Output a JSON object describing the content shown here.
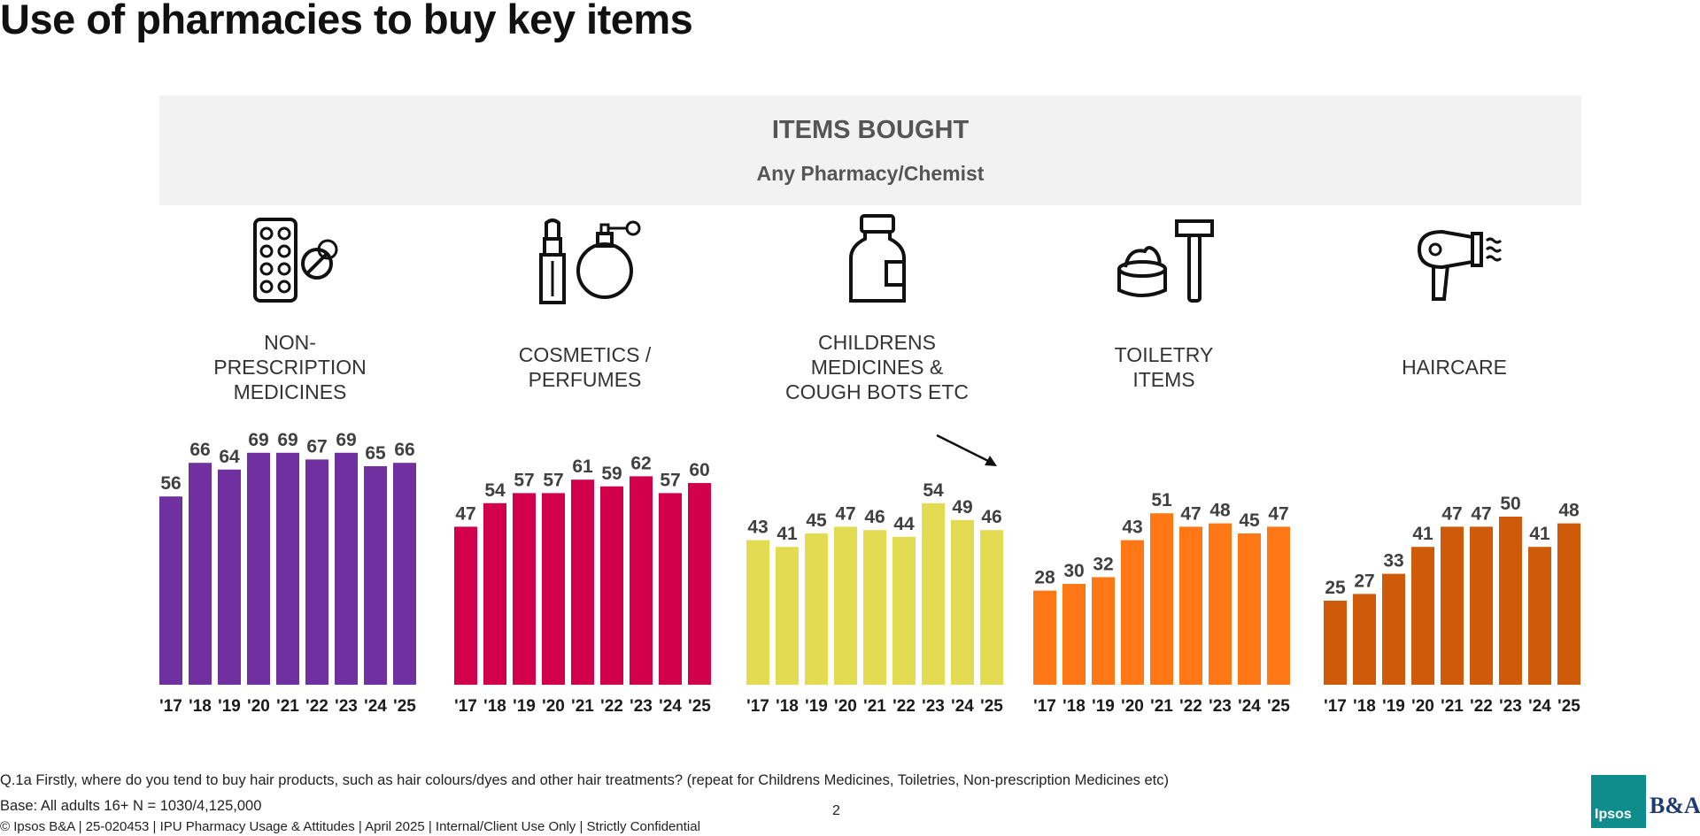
{
  "title": "Use of pharmacies to buy key items",
  "header": {
    "title": "ITEMS BOUGHT",
    "subtitle": "Any Pharmacy/Chemist"
  },
  "colors": {
    "non_prescription": "#7030a0",
    "cosmetics": "#d2004b",
    "childrens": "#e3db52",
    "toiletry": "#ff7815",
    "haircare": "#cf5a0a",
    "label": "#404040",
    "header_band": "#f2f2f2"
  },
  "icons": [
    "pill-blister-icon",
    "lipstick-perfume-icon",
    "medicine-bottle-icon",
    "cream-razor-icon",
    "hairdryer-icon"
  ],
  "chart_data": [
    {
      "type": "bar",
      "title": "NON-\nPRESCRIPTION\nMEDICINES",
      "categories": [
        "'17",
        "'18",
        "'19",
        "'20",
        "'21",
        "'22",
        "'23",
        "'24",
        "'25"
      ],
      "values": [
        56,
        66,
        64,
        69,
        69,
        67,
        69,
        65,
        66
      ],
      "color": "#7030a0",
      "ylim": [
        0,
        100
      ]
    },
    {
      "type": "bar",
      "title": "COSMETICS /\nPERFUMES",
      "categories": [
        "'17",
        "'18",
        "'19",
        "'20",
        "'21",
        "'22",
        "'23",
        "'24",
        "'25"
      ],
      "values": [
        47,
        54,
        57,
        57,
        61,
        59,
        62,
        57,
        60
      ],
      "color": "#d2004b",
      "ylim": [
        0,
        100
      ]
    },
    {
      "type": "bar",
      "title": "CHILDRENS\nMEDICINES &\nCOUGH BOTS ETC",
      "categories": [
        "'17",
        "'18",
        "'19",
        "'20",
        "'21",
        "'22",
        "'23",
        "'24",
        "'25"
      ],
      "values": [
        43,
        41,
        45,
        47,
        46,
        44,
        54,
        49,
        46
      ],
      "color": "#e3db52",
      "ylim": [
        0,
        100
      ],
      "annotation": "downward-trend-arrow"
    },
    {
      "type": "bar",
      "title": "TOILETRY\nITEMS",
      "categories": [
        "'17",
        "'18",
        "'19",
        "'20",
        "'21",
        "'22",
        "'23",
        "'24",
        "'25"
      ],
      "values": [
        28,
        30,
        32,
        43,
        51,
        47,
        48,
        45,
        47
      ],
      "color": "#ff7815",
      "ylim": [
        0,
        100
      ]
    },
    {
      "type": "bar",
      "title": "HAIRCARE",
      "categories": [
        "'17",
        "'18",
        "'19",
        "'20",
        "'21",
        "'22",
        "'23",
        "'24",
        "'25"
      ],
      "values": [
        25,
        27,
        33,
        41,
        47,
        47,
        50,
        41,
        48
      ],
      "color": "#cf5a0a",
      "ylim": [
        0,
        100
      ]
    }
  ],
  "footer": {
    "question": "Q.1a Firstly, where do you tend to buy hair products, such as hair colours/dyes and other hair treatments? (repeat for Childrens Medicines, Toiletries, Non-prescription Medicines etc)",
    "base": "Base:  All adults 16+ N = 1030/4,125,000",
    "copyright": "© Ipsos B&A  | 25-020453 |  IPU  Pharmacy Usage & Attitudes  | April 2025 | Internal/Client Use Only | Strictly Confidential",
    "page_number": "2"
  },
  "logo": {
    "ipsos_text": "Ipsos",
    "ba_text": "B&A"
  }
}
